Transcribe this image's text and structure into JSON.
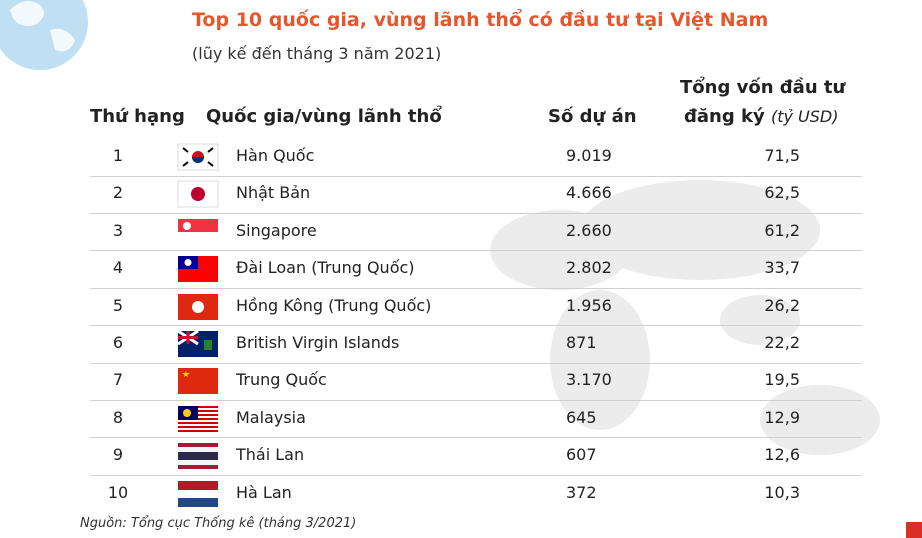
{
  "header": {
    "title": "Top 10 quốc gia, vùng lãnh thổ có đầu tư tại Việt Nam",
    "subtitle": "(lũy kế đến tháng 3 năm 2021)"
  },
  "table": {
    "columns": {
      "rank": "Thứ hạng",
      "country": "Quốc gia/vùng lãnh thổ",
      "projects": "Số dự án",
      "capital_line1": "Tổng vốn đầu tư",
      "capital_line2": "đăng ký",
      "capital_unit": "(tỷ USD)"
    },
    "rows": [
      [
        "1",
        "Hàn Quốc",
        "9.019",
        "71,5"
      ],
      [
        "2",
        "Nhật Bản",
        "4.666",
        "62,5"
      ],
      [
        "3",
        "Singapore",
        "2.660",
        "61,2"
      ],
      [
        "4",
        "Đài Loan (Trung Quốc)",
        "2.802",
        "33,7"
      ],
      [
        "5",
        "Hồng Kông (Trung Quốc)",
        "1.956",
        "26,2"
      ],
      [
        "6",
        "British Virgin Islands",
        "871",
        "22,2"
      ],
      [
        "7",
        "Trung Quốc",
        "3.170",
        "19,5"
      ],
      [
        "8",
        "Malaysia",
        "645",
        "12,9"
      ],
      [
        "9",
        "Thái Lan",
        "607",
        "12,6"
      ],
      [
        "10",
        "Hà Lan",
        "372",
        "10,3"
      ]
    ]
  },
  "footer": {
    "source": "Nguồn: Tổng cục Thống kê (tháng 3/2021)"
  }
}
